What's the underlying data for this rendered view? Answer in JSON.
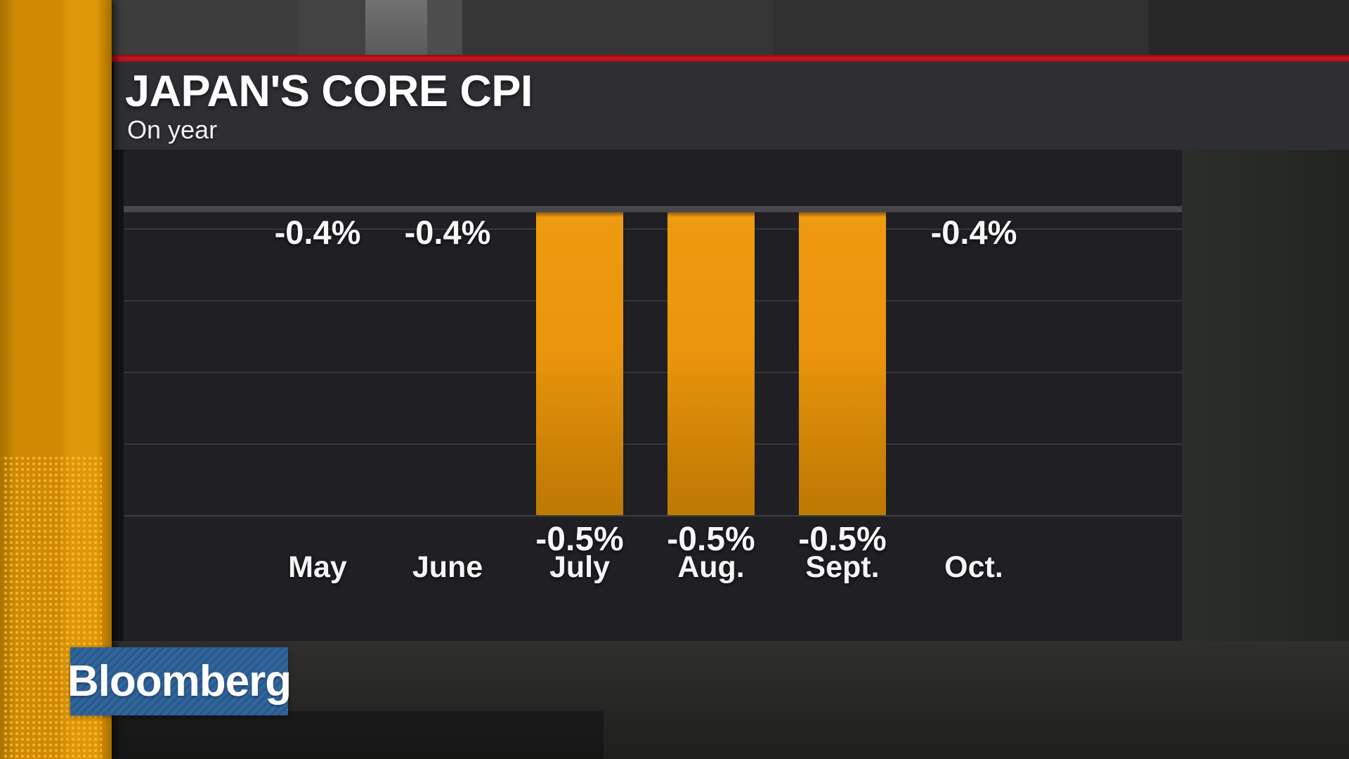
{
  "header": {
    "title": "JAPAN'S CORE CPI",
    "subtitle": "On year"
  },
  "logo": {
    "text": "Bloomberg"
  },
  "colors": {
    "accent_red": "#c41623",
    "bar_orange": "#ee970c",
    "strip_orange": "#d08a02",
    "logo_blue": "#2d5f92",
    "panel_dark": "#1f1f24"
  },
  "chart_data": {
    "type": "bar",
    "title": "JAPAN'S CORE CPI",
    "subtitle": "On year",
    "unit": "%",
    "categories": [
      "May",
      "June",
      "July",
      "Aug.",
      "Sept.",
      "Oct."
    ],
    "values": [
      -0.4,
      -0.4,
      -0.5,
      -0.5,
      -0.5,
      -0.4
    ],
    "labels": [
      "-0.4%",
      "-0.4%",
      "-0.5%",
      "-0.5%",
      "-0.5%",
      "-0.4%"
    ],
    "bars_drawn": [
      false,
      false,
      true,
      true,
      true,
      false
    ],
    "ylim": [
      -0.5,
      0
    ],
    "grid": "horizontal",
    "legend": "none"
  }
}
